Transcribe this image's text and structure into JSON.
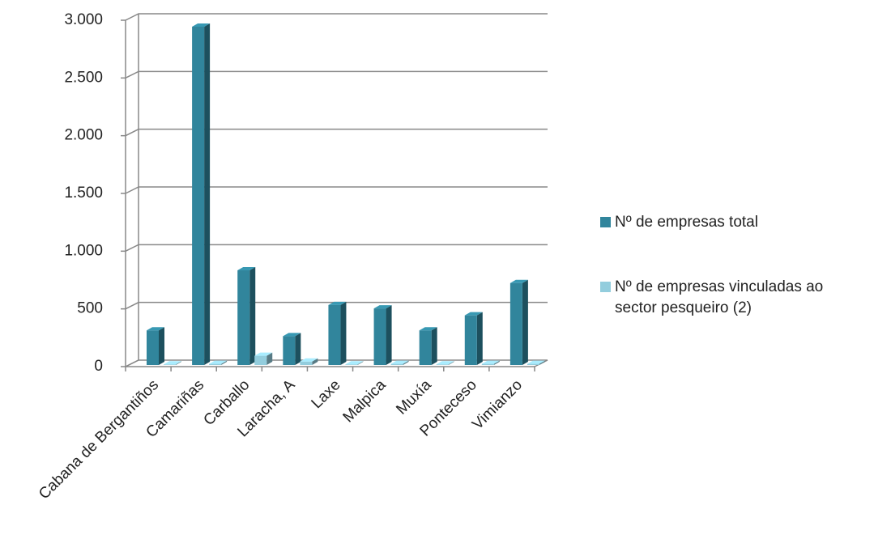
{
  "chart_data": {
    "type": "bar3d",
    "categories": [
      "Cabana de Bergantiños",
      "Camariñas",
      "Carballo",
      "Laracha, A",
      "Laxe",
      "Malpica",
      "Muxía",
      "Ponteceso",
      "Vimianzo"
    ],
    "series": [
      {
        "name": "Nº de empresas total",
        "color": "#31859c",
        "values": [
          300,
          2930,
          820,
          250,
          520,
          490,
          300,
          430,
          710
        ]
      },
      {
        "name": "Nº de empresas vinculadas ao sector pesqueiro (2)",
        "color": "#93cddd",
        "values": [
          5,
          10,
          80,
          30,
          5,
          10,
          5,
          10,
          10
        ]
      }
    ],
    "ylim": [
      0,
      3000
    ],
    "yticks": [
      0,
      500,
      {
        "value": 1000,
        "label": "1.000"
      },
      {
        "value": 1500,
        "label": "1.500"
      },
      {
        "value": 2000,
        "label": "2.000"
      },
      {
        "value": 2500,
        "label": "2.500"
      },
      {
        "value": 3000,
        "label": "3.000"
      }
    ],
    "grid": true,
    "legend": "right"
  }
}
